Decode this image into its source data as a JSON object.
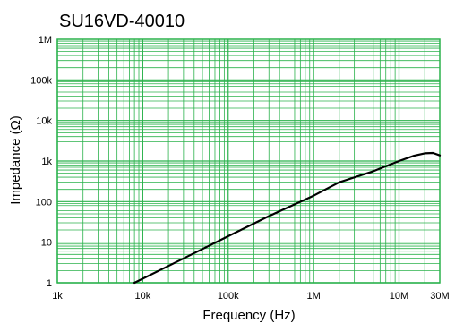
{
  "chart_data": {
    "type": "line",
    "title": "SU16VD-40010",
    "xlabel": "Frequency (Hz)",
    "ylabel": "Impedance (Ω)",
    "x_scale": "log",
    "y_scale": "log",
    "xlim": [
      1000,
      30000000
    ],
    "ylim": [
      1,
      1000000
    ],
    "grid": true,
    "x_ticks": [
      {
        "value": 1000,
        "label": "1k"
      },
      {
        "value": 10000,
        "label": "10k"
      },
      {
        "value": 100000,
        "label": "100k"
      },
      {
        "value": 1000000,
        "label": "1M"
      },
      {
        "value": 10000000,
        "label": "10M"
      },
      {
        "value": 30000000,
        "label": "30M"
      }
    ],
    "y_ticks": [
      {
        "value": 1,
        "label": "1"
      },
      {
        "value": 10,
        "label": "10"
      },
      {
        "value": 100,
        "label": "100"
      },
      {
        "value": 1000,
        "label": "1k"
      },
      {
        "value": 10000,
        "label": "10k"
      },
      {
        "value": 100000,
        "label": "100k"
      },
      {
        "value": 1000000,
        "label": "1M"
      }
    ],
    "colors": {
      "grid": "#2bb24c",
      "line": "#000000"
    },
    "series": [
      {
        "x": [
          8000,
          20000,
          50000,
          100000,
          300000,
          1000000,
          2000000,
          5000000,
          10000000,
          15000000,
          20000000,
          25000000,
          30000000
        ],
        "y": [
          1,
          2.6,
          6.8,
          14,
          44,
          140,
          300,
          560,
          1000,
          1350,
          1550,
          1580,
          1380
        ]
      }
    ]
  }
}
